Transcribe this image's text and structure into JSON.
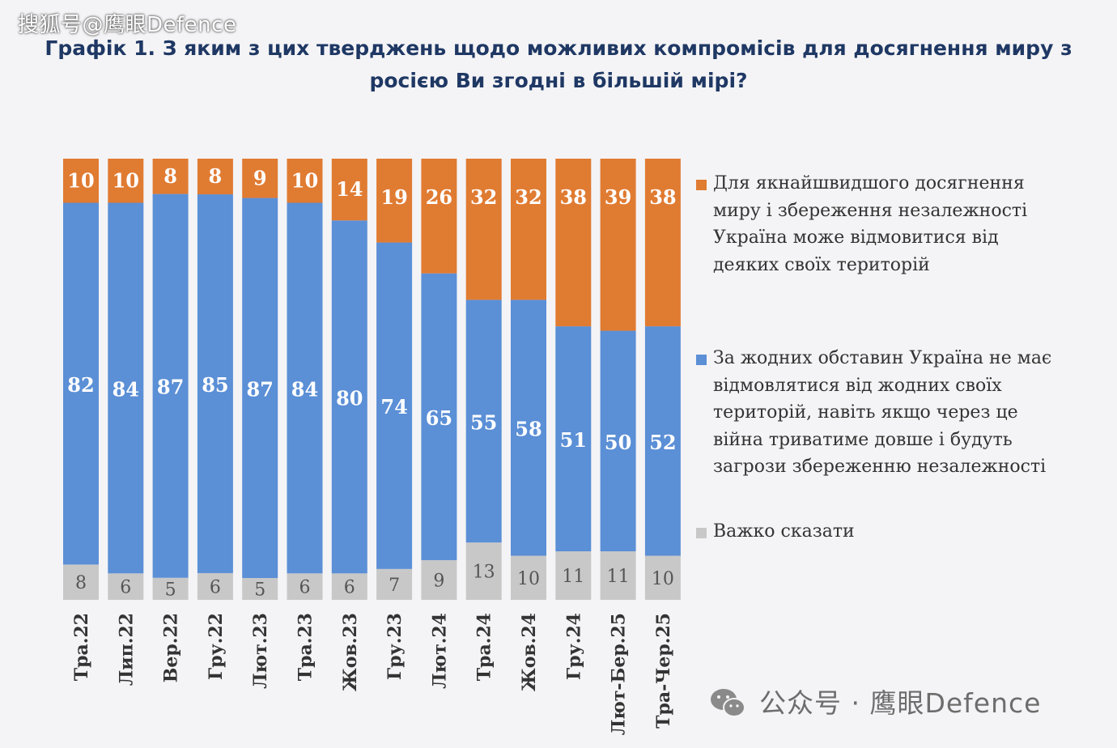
{
  "watermark_top": "搜狐号@鹰眼Defence",
  "watermark_bottom": "公众号 · 鹰眼Defence",
  "title": "Графік 1. З яким з цих тверджень щодо можливих компромісів для досягнення миру з росією Ви згодні в більшій мірі?",
  "colors": {
    "orange": "#e07b32",
    "blue": "#5b8fd6",
    "gray": "#c8c8c8",
    "title": "#1f3864"
  },
  "chart_data": {
    "type": "bar",
    "stacked": true,
    "percent": true,
    "title": "Графік 1. З яким з цих тверджень щодо можливих компромісів для досягнення миру з росією Ви згодні в більшій мірі?",
    "categories": [
      "Тра.22",
      "Лип.22",
      "Вер.22",
      "Гру.22",
      "Лют.23",
      "Тра.23",
      "Жов.23",
      "Гру.23",
      "Лют.24",
      "Тра.24",
      "Жов.24",
      "Гру.24",
      "Лют-Бер.25",
      "Тра-Чер.25"
    ],
    "series": [
      {
        "name": "Важко сказати",
        "color": "#c8c8c8",
        "values": [
          8,
          6,
          5,
          6,
          5,
          6,
          6,
          7,
          9,
          13,
          10,
          11,
          11,
          10
        ]
      },
      {
        "name": "За жодних обставин Україна не має відмовлятися від жодних своїх територій, навіть якщо через це війна триватиме довше і будуть загрози збереженню незалежності",
        "color": "#5b8fd6",
        "values": [
          82,
          84,
          87,
          85,
          87,
          84,
          80,
          74,
          65,
          55,
          58,
          51,
          50,
          52
        ]
      },
      {
        "name": "Для якнайшвидшого досягнення миру і збереження незалежності Україна може відмовитися від деяких своїх територій",
        "color": "#e07b32",
        "values": [
          10,
          10,
          8,
          8,
          9,
          10,
          14,
          19,
          26,
          32,
          32,
          38,
          39,
          38
        ]
      }
    ],
    "legend_position": "right",
    "grid": false
  },
  "legend": [
    {
      "label": "Для якнайшвидшого досягнення миру і збереження незалежності Україна може відмовитися від деяких своїх територій",
      "color": "#e07b32"
    },
    {
      "label": "За жодних обставин Україна не має відмовлятися від жодних своїх територій, навіть якщо через це війна триватиме довше і будуть загрози збереженню незалежності",
      "color": "#5b8fd6"
    },
    {
      "label": "Важко сказати",
      "color": "#c8c8c8"
    }
  ]
}
